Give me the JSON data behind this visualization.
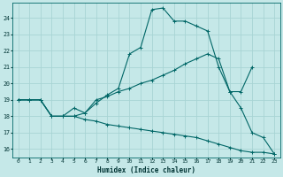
{
  "xlabel": "Humidex (Indice chaleur)",
  "bg_color": "#c5e8e8",
  "grid_color": "#a8d4d4",
  "line_color": "#006666",
  "xlim": [
    -0.5,
    23.5
  ],
  "ylim": [
    15.5,
    24.9
  ],
  "xticks": [
    0,
    1,
    2,
    3,
    4,
    5,
    6,
    7,
    8,
    9,
    10,
    11,
    12,
    13,
    14,
    15,
    16,
    17,
    18,
    19,
    20,
    21,
    22,
    23
  ],
  "yticks": [
    16,
    17,
    18,
    19,
    20,
    21,
    22,
    23,
    24
  ],
  "line1_x": [
    0,
    1,
    2,
    3,
    4,
    5,
    6,
    7,
    8,
    9,
    10,
    11,
    12,
    13,
    14,
    15,
    16,
    17,
    18,
    19,
    20,
    21,
    22,
    23
  ],
  "line1_y": [
    19.0,
    19.0,
    19.0,
    18.0,
    18.0,
    18.5,
    18.2,
    18.8,
    19.3,
    19.7,
    21.8,
    22.2,
    24.5,
    24.6,
    23.8,
    23.8,
    23.5,
    23.2,
    21.0,
    19.5,
    18.5,
    17.0,
    16.7,
    15.7
  ],
  "line2_x": [
    0,
    1,
    2,
    3,
    4,
    5,
    6,
    7,
    8,
    9,
    10,
    11,
    12,
    13,
    14,
    15,
    16,
    17,
    18,
    19,
    20,
    21
  ],
  "line2_y": [
    19.0,
    19.0,
    19.0,
    18.0,
    18.0,
    18.0,
    18.2,
    19.0,
    19.2,
    19.5,
    19.7,
    20.0,
    20.2,
    20.5,
    20.8,
    21.2,
    21.5,
    21.8,
    21.5,
    19.5,
    19.5,
    21.0
  ],
  "line3_x": [
    0,
    1,
    2,
    3,
    4,
    5,
    6,
    7,
    8,
    9,
    10,
    11,
    12,
    13,
    14,
    15,
    16,
    17,
    18,
    19,
    20,
    21,
    22,
    23
  ],
  "line3_y": [
    19.0,
    19.0,
    19.0,
    18.0,
    18.0,
    18.0,
    17.8,
    17.7,
    17.5,
    17.4,
    17.3,
    17.2,
    17.1,
    17.0,
    16.9,
    16.8,
    16.7,
    16.5,
    16.3,
    16.1,
    15.9,
    15.8,
    15.8,
    15.7
  ]
}
